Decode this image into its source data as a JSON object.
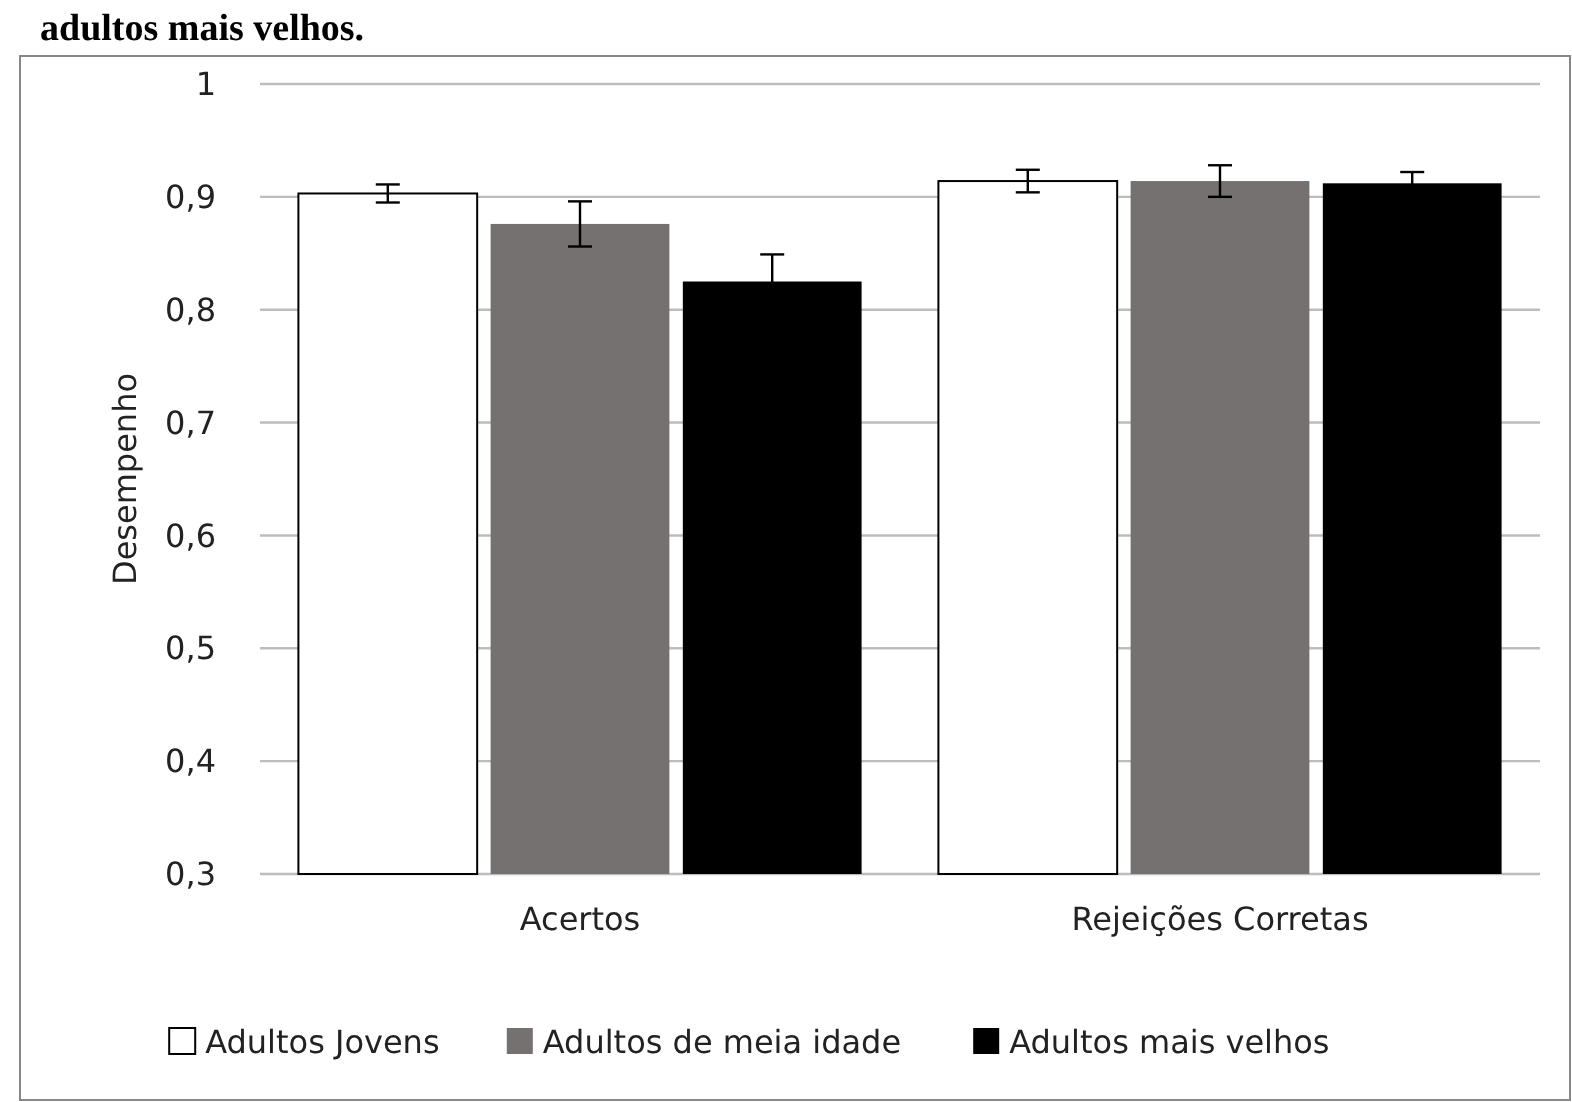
{
  "chart_data": {
    "type": "bar",
    "title": "adultos mais velhos.",
    "ylabel": "Desempenho",
    "categories": [
      "Acertos",
      "Rejeições Corretas"
    ],
    "series": [
      {
        "name": "Adultos Jovens",
        "color": "#ffffff",
        "values": [
          0.903,
          0.914
        ],
        "errors": [
          0.008,
          0.01
        ]
      },
      {
        "name": "Adultos de meia idade",
        "color": "#767171",
        "values": [
          0.876,
          0.914
        ],
        "errors": [
          0.02,
          0.014
        ]
      },
      {
        "name": "Adultos mais velhos",
        "color": "#000000",
        "values": [
          0.825,
          0.912
        ],
        "errors": [
          0.024,
          0.01
        ]
      }
    ],
    "ylim": [
      0.3,
      1
    ],
    "yticks": [
      {
        "value": 0.3,
        "label": "0,3"
      },
      {
        "value": 0.4,
        "label": "0,4"
      },
      {
        "value": 0.5,
        "label": "0,5"
      },
      {
        "value": 0.6,
        "label": "0,6"
      },
      {
        "value": 0.7,
        "label": "0,7"
      },
      {
        "value": 0.8,
        "label": "0,8"
      },
      {
        "value": 0.9,
        "label": "0,9"
      },
      {
        "value": 1,
        "label": "1"
      }
    ],
    "grid": "y",
    "legend": "bottom"
  }
}
